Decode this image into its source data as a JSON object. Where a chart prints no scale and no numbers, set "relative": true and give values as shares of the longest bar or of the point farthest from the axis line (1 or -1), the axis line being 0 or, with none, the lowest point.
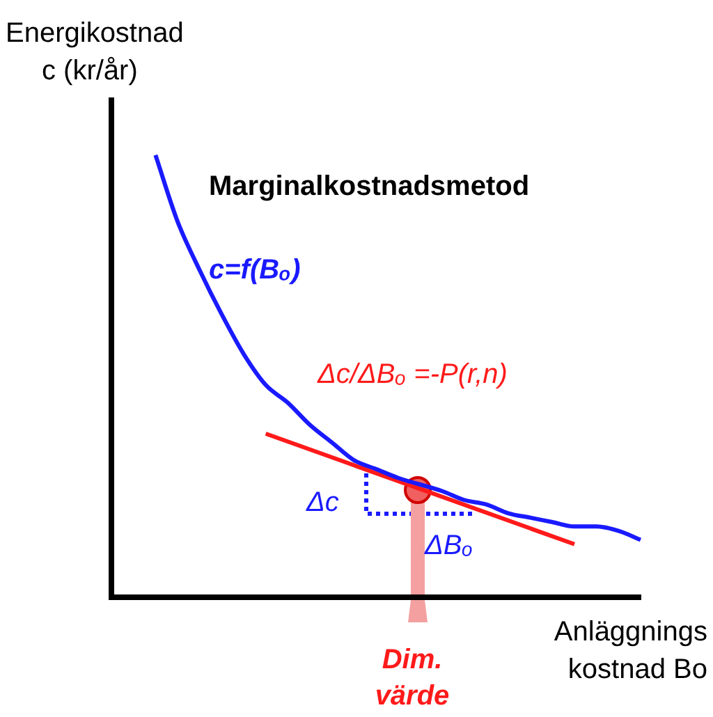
{
  "chart_data": {
    "type": "line",
    "title": "Marginalkostnadsmetod",
    "ylabel": "Energikostnad\nc (kr/år)",
    "xlabel": "Anläggnings\nkostnad Bo",
    "relative": true,
    "legend": false,
    "grid": false,
    "marker": "none",
    "line_style": "solid",
    "categories": [
      null,
      null,
      null,
      null,
      null,
      null,
      null,
      null,
      null,
      null,
      null,
      null,
      null,
      null,
      null,
      null,
      null,
      null,
      null,
      null,
      null,
      null,
      null,
      null,
      null
    ],
    "series": [
      {
        "name": "c=f(Bₒ)",
        "color": "#1a1aff",
        "values": [
          null,
          null,
          1,
          0.85,
          0.74,
          0.64,
          0.55,
          0.48,
          0.44,
          0.39,
          0.35,
          0.31,
          0.29,
          0.27,
          null,
          0.24,
          0.22,
          0.21,
          0.19,
          0.18,
          0.17,
          0.16,
          0.16,
          0.15,
          0.13
        ]
      },
      {
        "color": "#ff1a1a",
        "values": [
          null,
          null,
          null,
          null,
          null,
          null,
          null,
          0.37,
          null,
          null,
          null,
          null,
          null,
          null,
          null,
          null,
          null,
          null,
          null,
          null,
          null,
          0.12,
          null,
          null,
          null
        ]
      }
    ],
    "annotations": [
      "Δc/ΔBₒ =-P(r,n)",
      "Δc",
      "ΔBₒ",
      "Dim. värde"
    ]
  }
}
